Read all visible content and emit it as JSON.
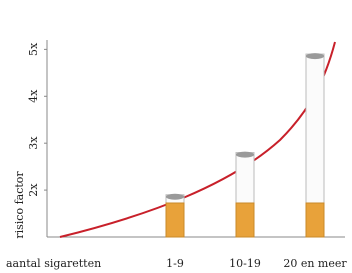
{
  "chart_data": {
    "type": "bar",
    "y_label": "risico factor",
    "x_label": "aantal sigaretten",
    "categories": [
      "1-9",
      "10-19",
      "20 en meer"
    ],
    "values": [
      1.9,
      2.8,
      4.9
    ],
    "ylim": [
      1,
      5.2
    ],
    "yticks": [
      {
        "value": 2,
        "label": "2x"
      },
      {
        "value": 3,
        "label": "3x"
      },
      {
        "value": 4,
        "label": "4x"
      },
      {
        "value": 5,
        "label": "5x"
      }
    ],
    "color": "#e8a23a",
    "curve_color": "#c8202a"
  }
}
